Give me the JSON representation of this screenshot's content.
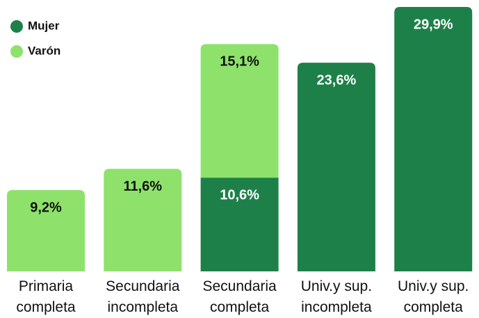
{
  "chart_data": {
    "type": "stacked_bar",
    "categories": [
      "Primaria completa",
      "Secundaria incompleta",
      "Secundaria completa",
      "Univ.y sup. incompleta",
      "Univ.y sup. completa"
    ],
    "series": [
      {
        "name": "Mujer",
        "color": "#1e8049",
        "values": [
          null,
          null,
          10.6,
          23.6,
          29.9
        ],
        "value_labels": [
          null,
          null,
          "10,6%",
          "23,6%",
          "29,9%"
        ]
      },
      {
        "name": "Varón",
        "color": "#8ee26b",
        "values": [
          9.2,
          11.6,
          15.1,
          null,
          null
        ],
        "value_labels": [
          "9,2%",
          "11,6%",
          "15,1%",
          null,
          null
        ]
      }
    ],
    "legend": "top-left"
  }
}
